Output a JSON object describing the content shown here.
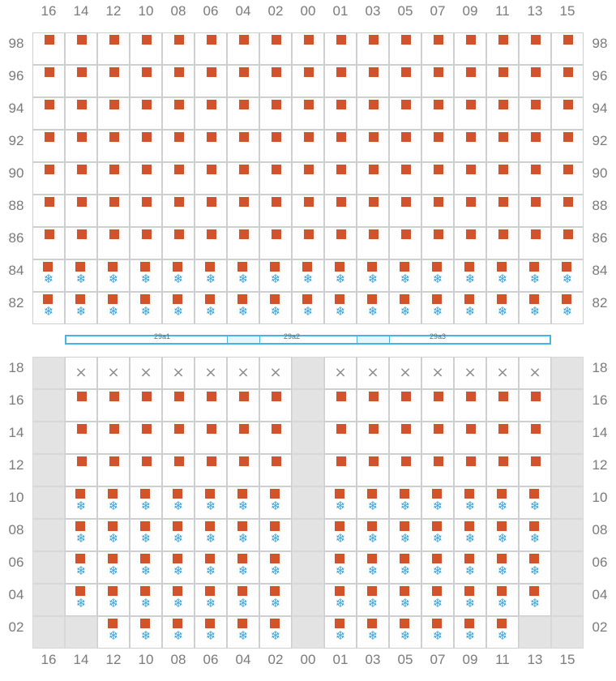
{
  "upper_section": {
    "column_labels": [
      "16",
      "14",
      "12",
      "10",
      "08",
      "06",
      "04",
      "02",
      "00",
      "01",
      "03",
      "05",
      "07",
      "09",
      "11",
      "13",
      "15"
    ],
    "row_labels": [
      "98",
      "96",
      "94",
      "92",
      "90",
      "88",
      "86",
      "84",
      "82"
    ],
    "rows_with_refrigeration": [
      "84",
      "82"
    ],
    "cell_marker": "orange-square",
    "refrigerated_marker": "snowflake-icon"
  },
  "bays": [
    {
      "label": "29a1",
      "from_col": "14",
      "to_col": "04"
    },
    {
      "label": "29a2",
      "from_col": "04",
      "to_col": "01"
    },
    {
      "label": "29a3",
      "from_col": "01",
      "to_col": "13"
    }
  ],
  "lower_section": {
    "column_labels": [
      "16",
      "14",
      "12",
      "10",
      "08",
      "06",
      "04",
      "02",
      "00",
      "01",
      "03",
      "05",
      "07",
      "09",
      "11",
      "13",
      "15"
    ],
    "row_labels": [
      "18",
      "16",
      "14",
      "12",
      "10",
      "08",
      "06",
      "04",
      "02"
    ],
    "unavailable_columns": [
      "16",
      "00",
      "15"
    ],
    "blocked_row": "18",
    "blocked_marker": "×",
    "refrigerated_rows": [
      "10",
      "08",
      "06",
      "04",
      "02"
    ],
    "row_02_empty_columns": [
      "14",
      "13"
    ]
  },
  "colors": {
    "slot_marker": "#d4512a",
    "refrigerated_icon": "#35a0dd",
    "bay_bar": "#4ab3e6",
    "unavailable": "#e3e3e3"
  }
}
